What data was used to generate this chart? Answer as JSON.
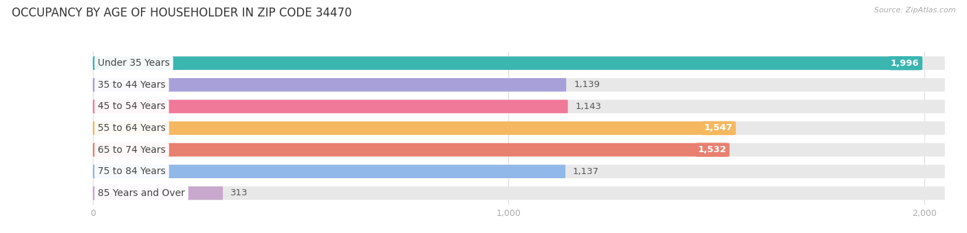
{
  "title": "OCCUPANCY BY AGE OF HOUSEHOLDER IN ZIP CODE 34470",
  "source": "Source: ZipAtlas.com",
  "categories": [
    "Under 35 Years",
    "35 to 44 Years",
    "45 to 54 Years",
    "55 to 64 Years",
    "65 to 74 Years",
    "75 to 84 Years",
    "85 Years and Over"
  ],
  "values": [
    1996,
    1139,
    1143,
    1547,
    1532,
    1137,
    313
  ],
  "bar_colors": [
    "#3ab5b0",
    "#a8a0d8",
    "#f07898",
    "#f5b860",
    "#e88070",
    "#90b8e8",
    "#c8a8cc"
  ],
  "value_inside": [
    true,
    false,
    false,
    true,
    true,
    false,
    false
  ],
  "xlim_left": -200,
  "xlim_right": 2080,
  "xticks": [
    0,
    1000,
    2000
  ],
  "xticklabels": [
    "0",
    "1,000",
    "2,000"
  ],
  "background_color": "#ffffff",
  "bar_bg_color": "#e8e8e8",
  "title_fontsize": 12,
  "label_fontsize": 10,
  "value_fontsize": 9.5,
  "bar_height": 0.62,
  "rounding_size": 90
}
